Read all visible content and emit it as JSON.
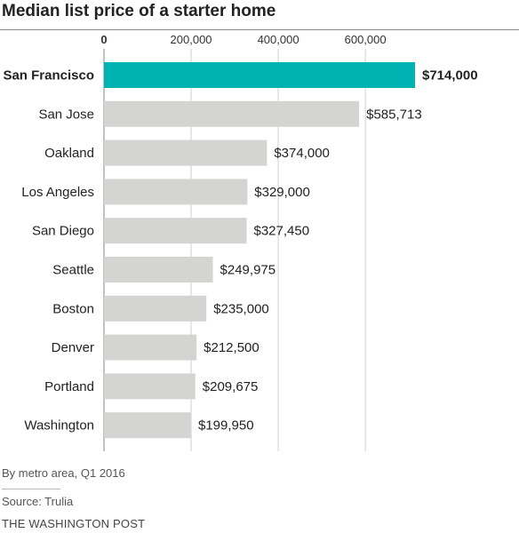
{
  "title": "Median list price of a starter home",
  "note": "By metro area, Q1 2016",
  "source": "Source: Trulia",
  "credit": "THE WASHINGTON POST",
  "colors": {
    "highlight": "#00b3b3",
    "bar": "#d4d4d2",
    "grid": "#d0d0d0",
    "axis": "#999999"
  },
  "chart_data": {
    "type": "bar",
    "orientation": "horizontal",
    "categories": [
      "San Francisco",
      "San Jose",
      "Oakland",
      "Los Angeles",
      "San Diego",
      "Seattle",
      "Boston",
      "Denver",
      "Portland",
      "Washington"
    ],
    "values": [
      714000,
      585713,
      374000,
      329000,
      327450,
      249975,
      235000,
      212500,
      209675,
      199950
    ],
    "value_labels": [
      "$714,000",
      "$585,713",
      "$374,000",
      "$329,000",
      "$327,450",
      "$249,975",
      "$235,000",
      "$212,500",
      "$209,675",
      "$199,950"
    ],
    "x_ticks": [
      0,
      200000,
      400000,
      600000
    ],
    "x_tick_labels": [
      "0",
      "200,000",
      "400,000",
      "600,000"
    ],
    "xlim": [
      0,
      714000
    ],
    "highlight_index": 0,
    "grid": true
  }
}
